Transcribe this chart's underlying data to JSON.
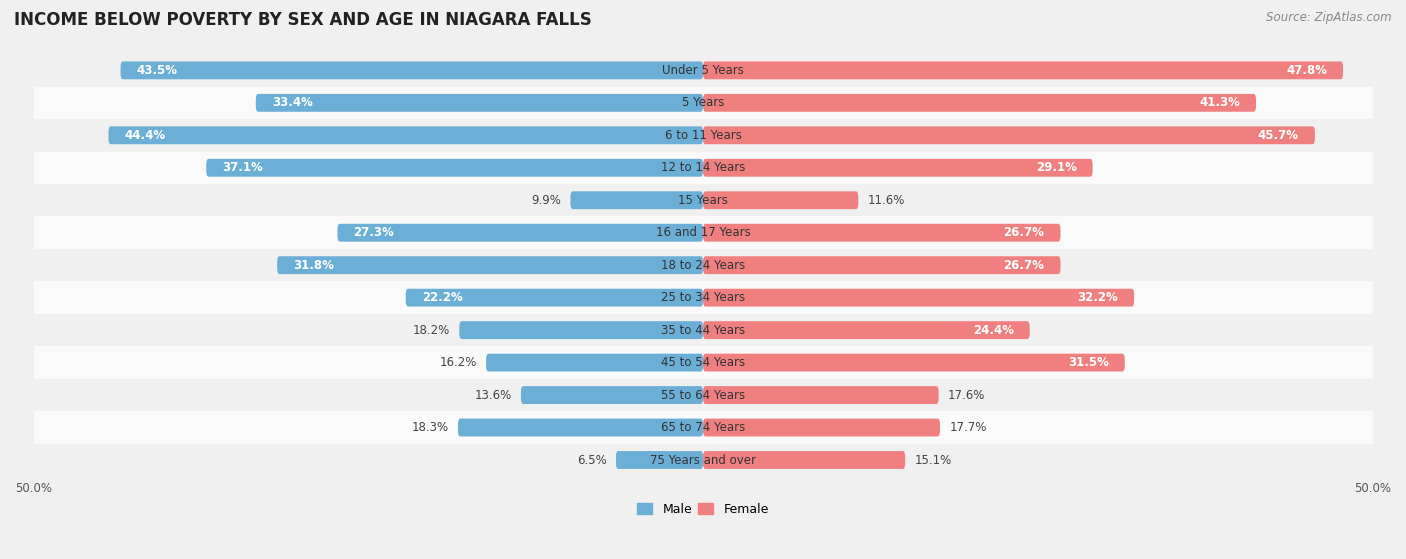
{
  "title": "INCOME BELOW POVERTY BY SEX AND AGE IN NIAGARA FALLS",
  "source": "Source: ZipAtlas.com",
  "categories": [
    "Under 5 Years",
    "5 Years",
    "6 to 11 Years",
    "12 to 14 Years",
    "15 Years",
    "16 and 17 Years",
    "18 to 24 Years",
    "25 to 34 Years",
    "35 to 44 Years",
    "45 to 54 Years",
    "55 to 64 Years",
    "65 to 74 Years",
    "75 Years and over"
  ],
  "male_values": [
    43.5,
    33.4,
    44.4,
    37.1,
    9.9,
    27.3,
    31.8,
    22.2,
    18.2,
    16.2,
    13.6,
    18.3,
    6.5
  ],
  "female_values": [
    47.8,
    41.3,
    45.7,
    29.1,
    11.6,
    26.7,
    26.7,
    32.2,
    24.4,
    31.5,
    17.6,
    17.7,
    15.1
  ],
  "male_color": "#6baed6",
  "female_color": "#f08080",
  "male_label": "Male",
  "female_label": "Female",
  "axis_limit": 50.0,
  "row_bg_odd": "#f0f0f0",
  "row_bg_even": "#fafafa",
  "title_fontsize": 12,
  "source_fontsize": 8.5,
  "cat_fontsize": 8.5,
  "value_fontsize": 8.5,
  "inside_label_threshold": 20.0
}
